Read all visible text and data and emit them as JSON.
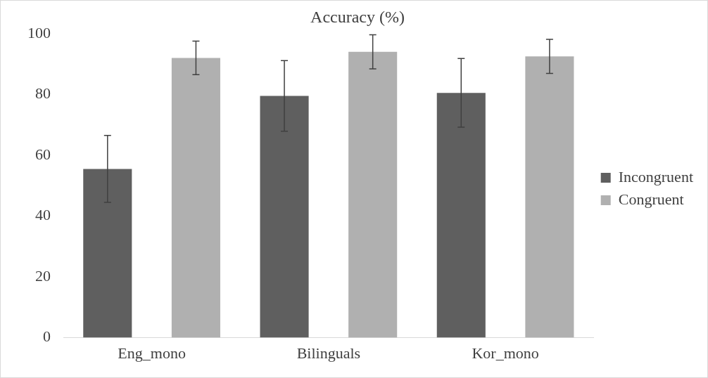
{
  "chart_data": {
    "type": "bar",
    "title": "Accuracy (%)",
    "categories": [
      "Eng_mono",
      "Bilinguals",
      "Kor_mono"
    ],
    "series": [
      {
        "name": "Incongruent",
        "color": "#5f5f5f",
        "values": [
          55.5,
          79.5,
          80.5
        ],
        "errors": [
          11,
          11.6,
          11.3
        ]
      },
      {
        "name": "Congruent",
        "color": "#b0b0b0",
        "values": [
          92,
          94,
          92.5
        ],
        "errors": [
          5.5,
          5.6,
          5.6
        ]
      }
    ],
    "ylim": [
      0,
      100
    ],
    "yticks": [
      0,
      20,
      40,
      60,
      80,
      100
    ],
    "grid": false,
    "legend": "right"
  }
}
